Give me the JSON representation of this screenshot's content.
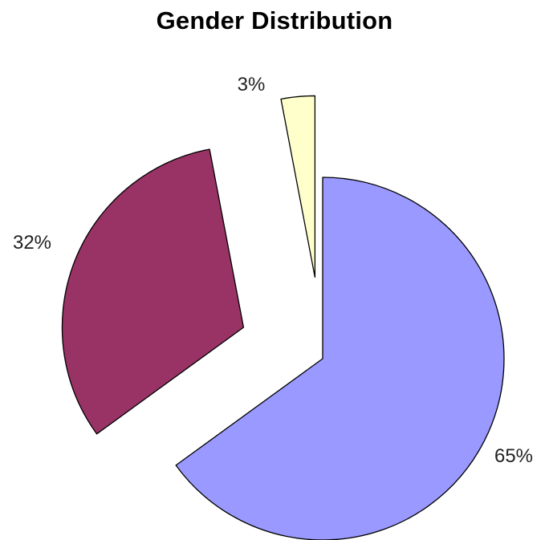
{
  "chart_data": {
    "type": "pie",
    "title": "Gender Distribution",
    "exploded": true,
    "slices": [
      {
        "label": "65%",
        "value": 65,
        "color": "#9999ff"
      },
      {
        "label": "32%",
        "value": 32,
        "color": "#993366"
      },
      {
        "label": "3%",
        "value": 3,
        "color": "#ffffcc"
      }
    ]
  }
}
